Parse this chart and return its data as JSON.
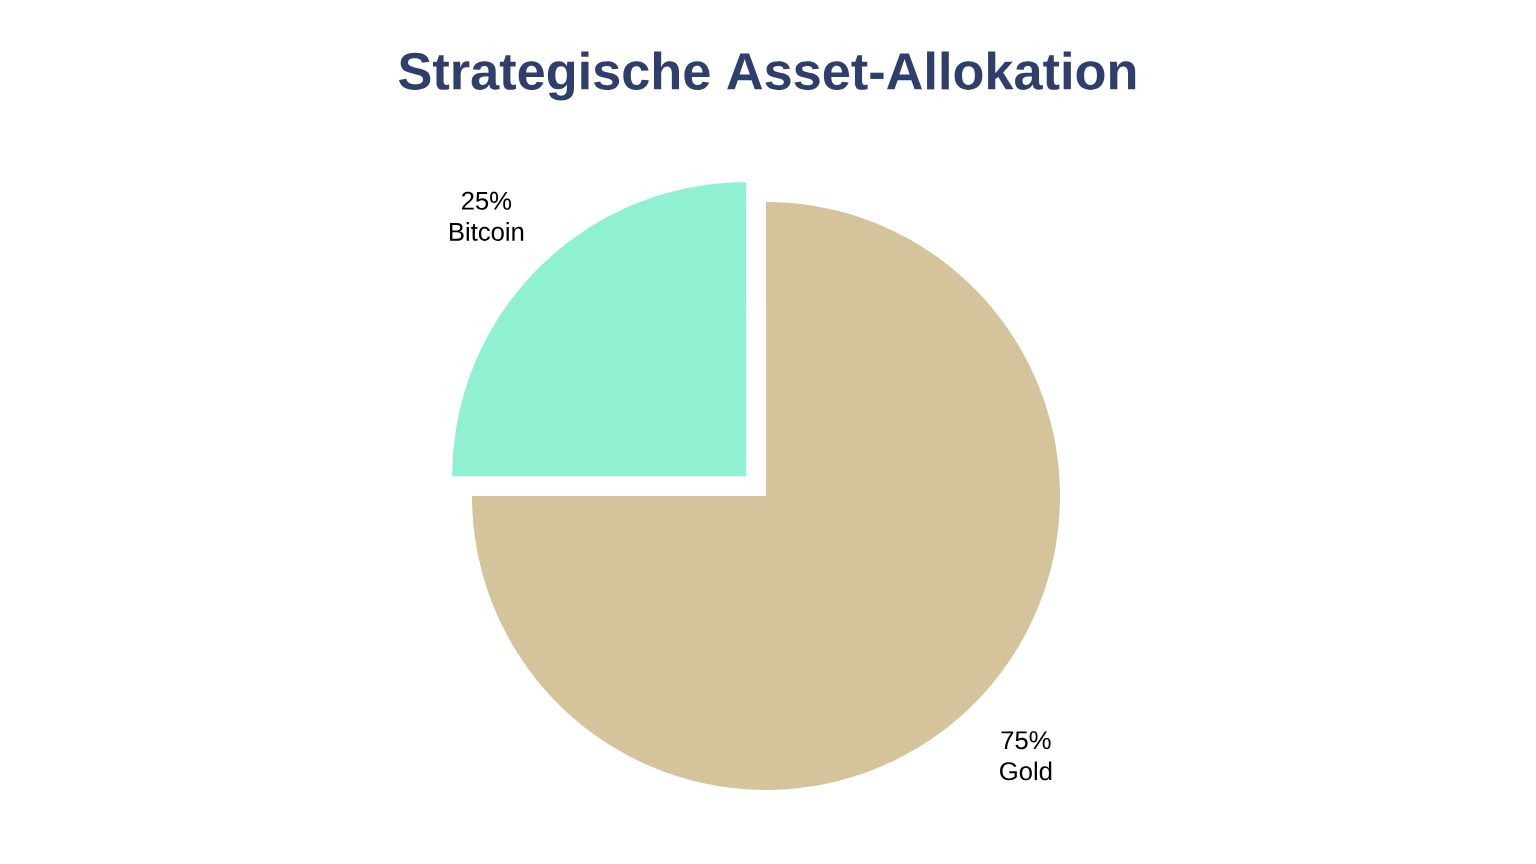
{
  "chart_data": {
    "type": "pie",
    "title": "Strategische Asset-Allokation",
    "categories": [
      "Gold",
      "Bitcoin"
    ],
    "values": [
      75,
      25
    ],
    "value_labels": [
      "75%",
      "25%"
    ],
    "colors": [
      "#d4c39b",
      "#8ff0d2"
    ]
  }
}
